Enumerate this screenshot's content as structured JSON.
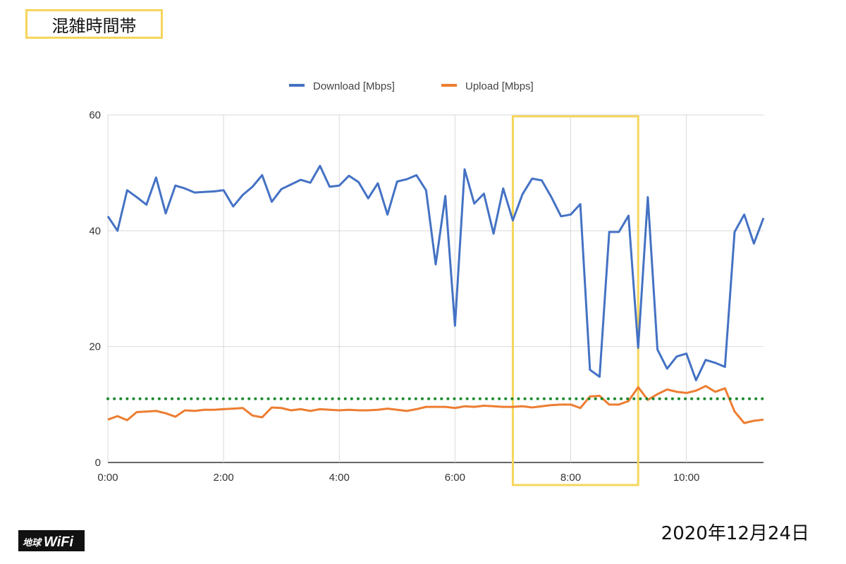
{
  "title": "混雑時間帯",
  "date": "2020年12月24日",
  "logo": {
    "text": "地球WiFi",
    "icon": "globe-wifi-logo"
  },
  "colors": {
    "download": "#4472c4",
    "upload": "#ed7d31",
    "threshold": "#1a8a2e",
    "highlight": "#f6d55c",
    "grid": "#d9d9d9"
  },
  "chart_data": {
    "type": "line",
    "title": "",
    "xlabel": "",
    "ylabel": "",
    "ylim": [
      0,
      60
    ],
    "yticks": [
      "0",
      "20",
      "40",
      "60"
    ],
    "xlim_minutes": [
      0,
      680
    ],
    "xticks": [
      "0:00",
      "2:00",
      "4:00",
      "6:00",
      "8:00",
      "10:00"
    ],
    "legend_position": "top-center",
    "grid": true,
    "x": [
      "0:00",
      "0:10",
      "0:20",
      "0:30",
      "0:40",
      "0:50",
      "1:00",
      "1:10",
      "1:20",
      "1:30",
      "1:40",
      "1:50",
      "2:00",
      "2:10",
      "2:20",
      "2:30",
      "2:40",
      "2:50",
      "3:00",
      "3:10",
      "3:20",
      "3:30",
      "3:40",
      "3:50",
      "4:00",
      "4:10",
      "4:20",
      "4:30",
      "4:40",
      "4:50",
      "5:00",
      "5:10",
      "5:20",
      "5:30",
      "5:40",
      "5:50",
      "6:00",
      "6:10",
      "6:20",
      "6:30",
      "6:40",
      "6:50",
      "7:00",
      "7:10",
      "7:20",
      "7:30",
      "7:40",
      "7:50",
      "8:00",
      "8:10",
      "8:20",
      "8:30",
      "8:40",
      "8:50",
      "9:00",
      "9:10",
      "9:20",
      "9:30",
      "9:40",
      "9:50",
      "10:00",
      "10:10",
      "10:20",
      "10:30",
      "10:40",
      "10:50",
      "11:00",
      "11:10",
      "11:20"
    ],
    "series": [
      {
        "name": "Download [Mbps]",
        "values": [
          42.5,
          40,
          47,
          45.8,
          44.5,
          49.2,
          43,
          47.8,
          47.3,
          46.6,
          46.7,
          46.8,
          47,
          44.2,
          46.2,
          47.6,
          49.6,
          45,
          47.2,
          48,
          48.8,
          48.3,
          51.2,
          47.6,
          47.8,
          49.5,
          48.4,
          45.6,
          48.2,
          42.8,
          48.5,
          48.9,
          49.6,
          47,
          34.2,
          46,
          23.6,
          50.6,
          44.7,
          46.4,
          39.5,
          47.3,
          41.8,
          46.3,
          49,
          48.7,
          45.8,
          42.5,
          42.8,
          44.6,
          16,
          14.8,
          39.8,
          39.8,
          42.6,
          19.8,
          45.8,
          19.5,
          16.2,
          18.3,
          18.8,
          14.2,
          17.7,
          17.2,
          16.5,
          39.8,
          42.8,
          37.8,
          42.2
        ]
      },
      {
        "name": "Upload [Mbps]",
        "values": [
          7.4,
          8,
          7.3,
          8.7,
          8.8,
          8.9,
          8.5,
          7.9,
          9,
          8.9,
          9.1,
          9.1,
          9.2,
          9.3,
          9.4,
          8.1,
          7.8,
          9.5,
          9.4,
          9,
          9.2,
          8.9,
          9.2,
          9.1,
          9,
          9.1,
          9,
          9,
          9.1,
          9.3,
          9.1,
          8.9,
          9.2,
          9.6,
          9.6,
          9.6,
          9.4,
          9.7,
          9.6,
          9.8,
          9.7,
          9.6,
          9.6,
          9.7,
          9.5,
          9.7,
          9.9,
          10,
          10,
          9.4,
          11.4,
          11.5,
          10,
          10,
          10.6,
          13,
          10.8,
          11.8,
          12.6,
          12.2,
          12,
          12.4,
          13.2,
          12.2,
          12.8,
          8.8,
          6.8,
          7.2,
          7.4
        ]
      }
    ],
    "threshold": {
      "value": 11,
      "style": "dotted"
    },
    "highlight_range": [
      "7:00",
      "9:10"
    ]
  }
}
